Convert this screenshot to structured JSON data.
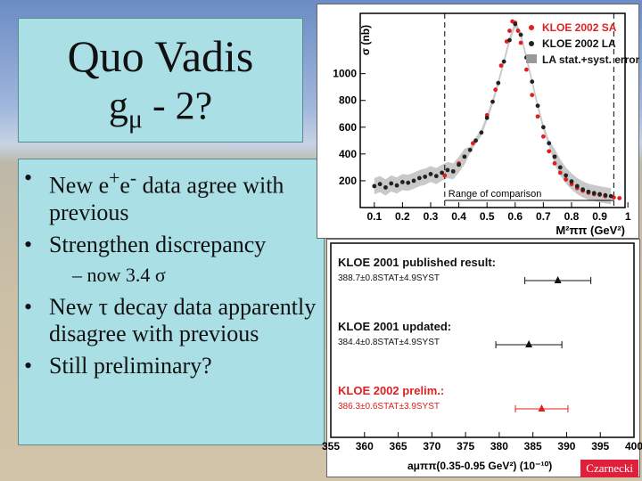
{
  "title": {
    "line1": "Quo Vadis",
    "g": "g",
    "mu": "μ",
    "line2_rest": " - 2?"
  },
  "bullets": [
    {
      "p1": "New e",
      "sup1": "+",
      "p2": "e",
      "sup2": "-",
      "p3": " data agree with previous"
    },
    {
      "text": "Strengthen discrepancy"
    },
    {
      "text": "– now 3.4 σ"
    },
    {
      "text": "New τ decay data apparently disagree with previous"
    },
    {
      "text": "Still preliminary?"
    }
  ],
  "credit": "Czarnecki",
  "chart_data": [
    {
      "type": "scatter",
      "ylabel": "σ (nb)",
      "xlabel": "M²ππ (GeV²)",
      "xticks": [
        "0.1",
        "0.2",
        "0.3",
        "0.4",
        "0.5",
        "0.6",
        "0.7",
        "0.8",
        "0.9",
        "1"
      ],
      "yticks": [
        "200",
        "400",
        "600",
        "800",
        "1000"
      ],
      "xlim": [
        0.05,
        0.99
      ],
      "ylim": [
        0,
        1450
      ],
      "legend": [
        "KLOE 2002 SA",
        "KLOE 2002 LA",
        "LA stat.+syst. error"
      ],
      "legend_colors": [
        "#e02020",
        "#222222",
        "#999999"
      ],
      "annotation": "Range of comparison",
      "range": [
        0.35,
        0.95
      ],
      "series": [
        {
          "name": "KLOE 2002 SA",
          "color": "#e02020",
          "x": [
            0.35,
            0.4,
            0.45,
            0.5,
            0.53,
            0.55,
            0.57,
            0.58,
            0.59,
            0.6,
            0.61,
            0.62,
            0.64,
            0.66,
            0.68,
            0.7,
            0.72,
            0.74,
            0.76,
            0.78,
            0.8,
            0.82,
            0.84,
            0.86,
            0.88,
            0.9,
            0.92,
            0.95,
            0.97
          ],
          "y": [
            240,
            330,
            480,
            690,
            880,
            1060,
            1240,
            1320,
            1390,
            1380,
            1320,
            1230,
            1030,
            840,
            680,
            530,
            420,
            330,
            260,
            210,
            175,
            145,
            125,
            110,
            100,
            95,
            85,
            75,
            70
          ]
        },
        {
          "name": "KLOE 2002 LA",
          "color": "#222222",
          "x": [
            0.1,
            0.12,
            0.14,
            0.16,
            0.18,
            0.2,
            0.22,
            0.24,
            0.26,
            0.28,
            0.3,
            0.32,
            0.34,
            0.36,
            0.38,
            0.4,
            0.42,
            0.44,
            0.46,
            0.48,
            0.5,
            0.52,
            0.54,
            0.56,
            0.58,
            0.6,
            0.62,
            0.64,
            0.66,
            0.68,
            0.7,
            0.72,
            0.74,
            0.76,
            0.78,
            0.8,
            0.82,
            0.84,
            0.86,
            0.88,
            0.9,
            0.92,
            0.94
          ],
          "y": [
            160,
            175,
            150,
            180,
            165,
            190,
            185,
            200,
            220,
            230,
            250,
            235,
            260,
            280,
            270,
            320,
            380,
            430,
            500,
            560,
            670,
            790,
            930,
            1090,
            1250,
            1370,
            1290,
            1120,
            940,
            760,
            600,
            480,
            380,
            300,
            240,
            195,
            160,
            135,
            118,
            108,
            100,
            92,
            85
          ]
        }
      ]
    },
    {
      "type": "scatter",
      "xlabel": "aμππ(0.35-0.95 GeV²) (10⁻¹⁰)",
      "xticks": [
        "355",
        "360",
        "365",
        "370",
        "375",
        "380",
        "385",
        "390",
        "395",
        "400"
      ],
      "xlim": [
        355,
        400
      ],
      "results": [
        {
          "title": "KLOE 2001 published result:",
          "value_text": "388.7±0.8STAT±4.9SYST",
          "value": 388.7,
          "err": 4.9,
          "color": "#111111"
        },
        {
          "title": "KLOE 2001 updated:",
          "value_text": "384.4±0.8STAT±4.9SYST",
          "value": 384.4,
          "err": 4.9,
          "color": "#111111"
        },
        {
          "title": "KLOE 2002 prelim.:",
          "value_text": "386.3±0.6STAT±3.9SYST",
          "value": 386.3,
          "err": 3.9,
          "color": "#e02020"
        }
      ]
    }
  ]
}
